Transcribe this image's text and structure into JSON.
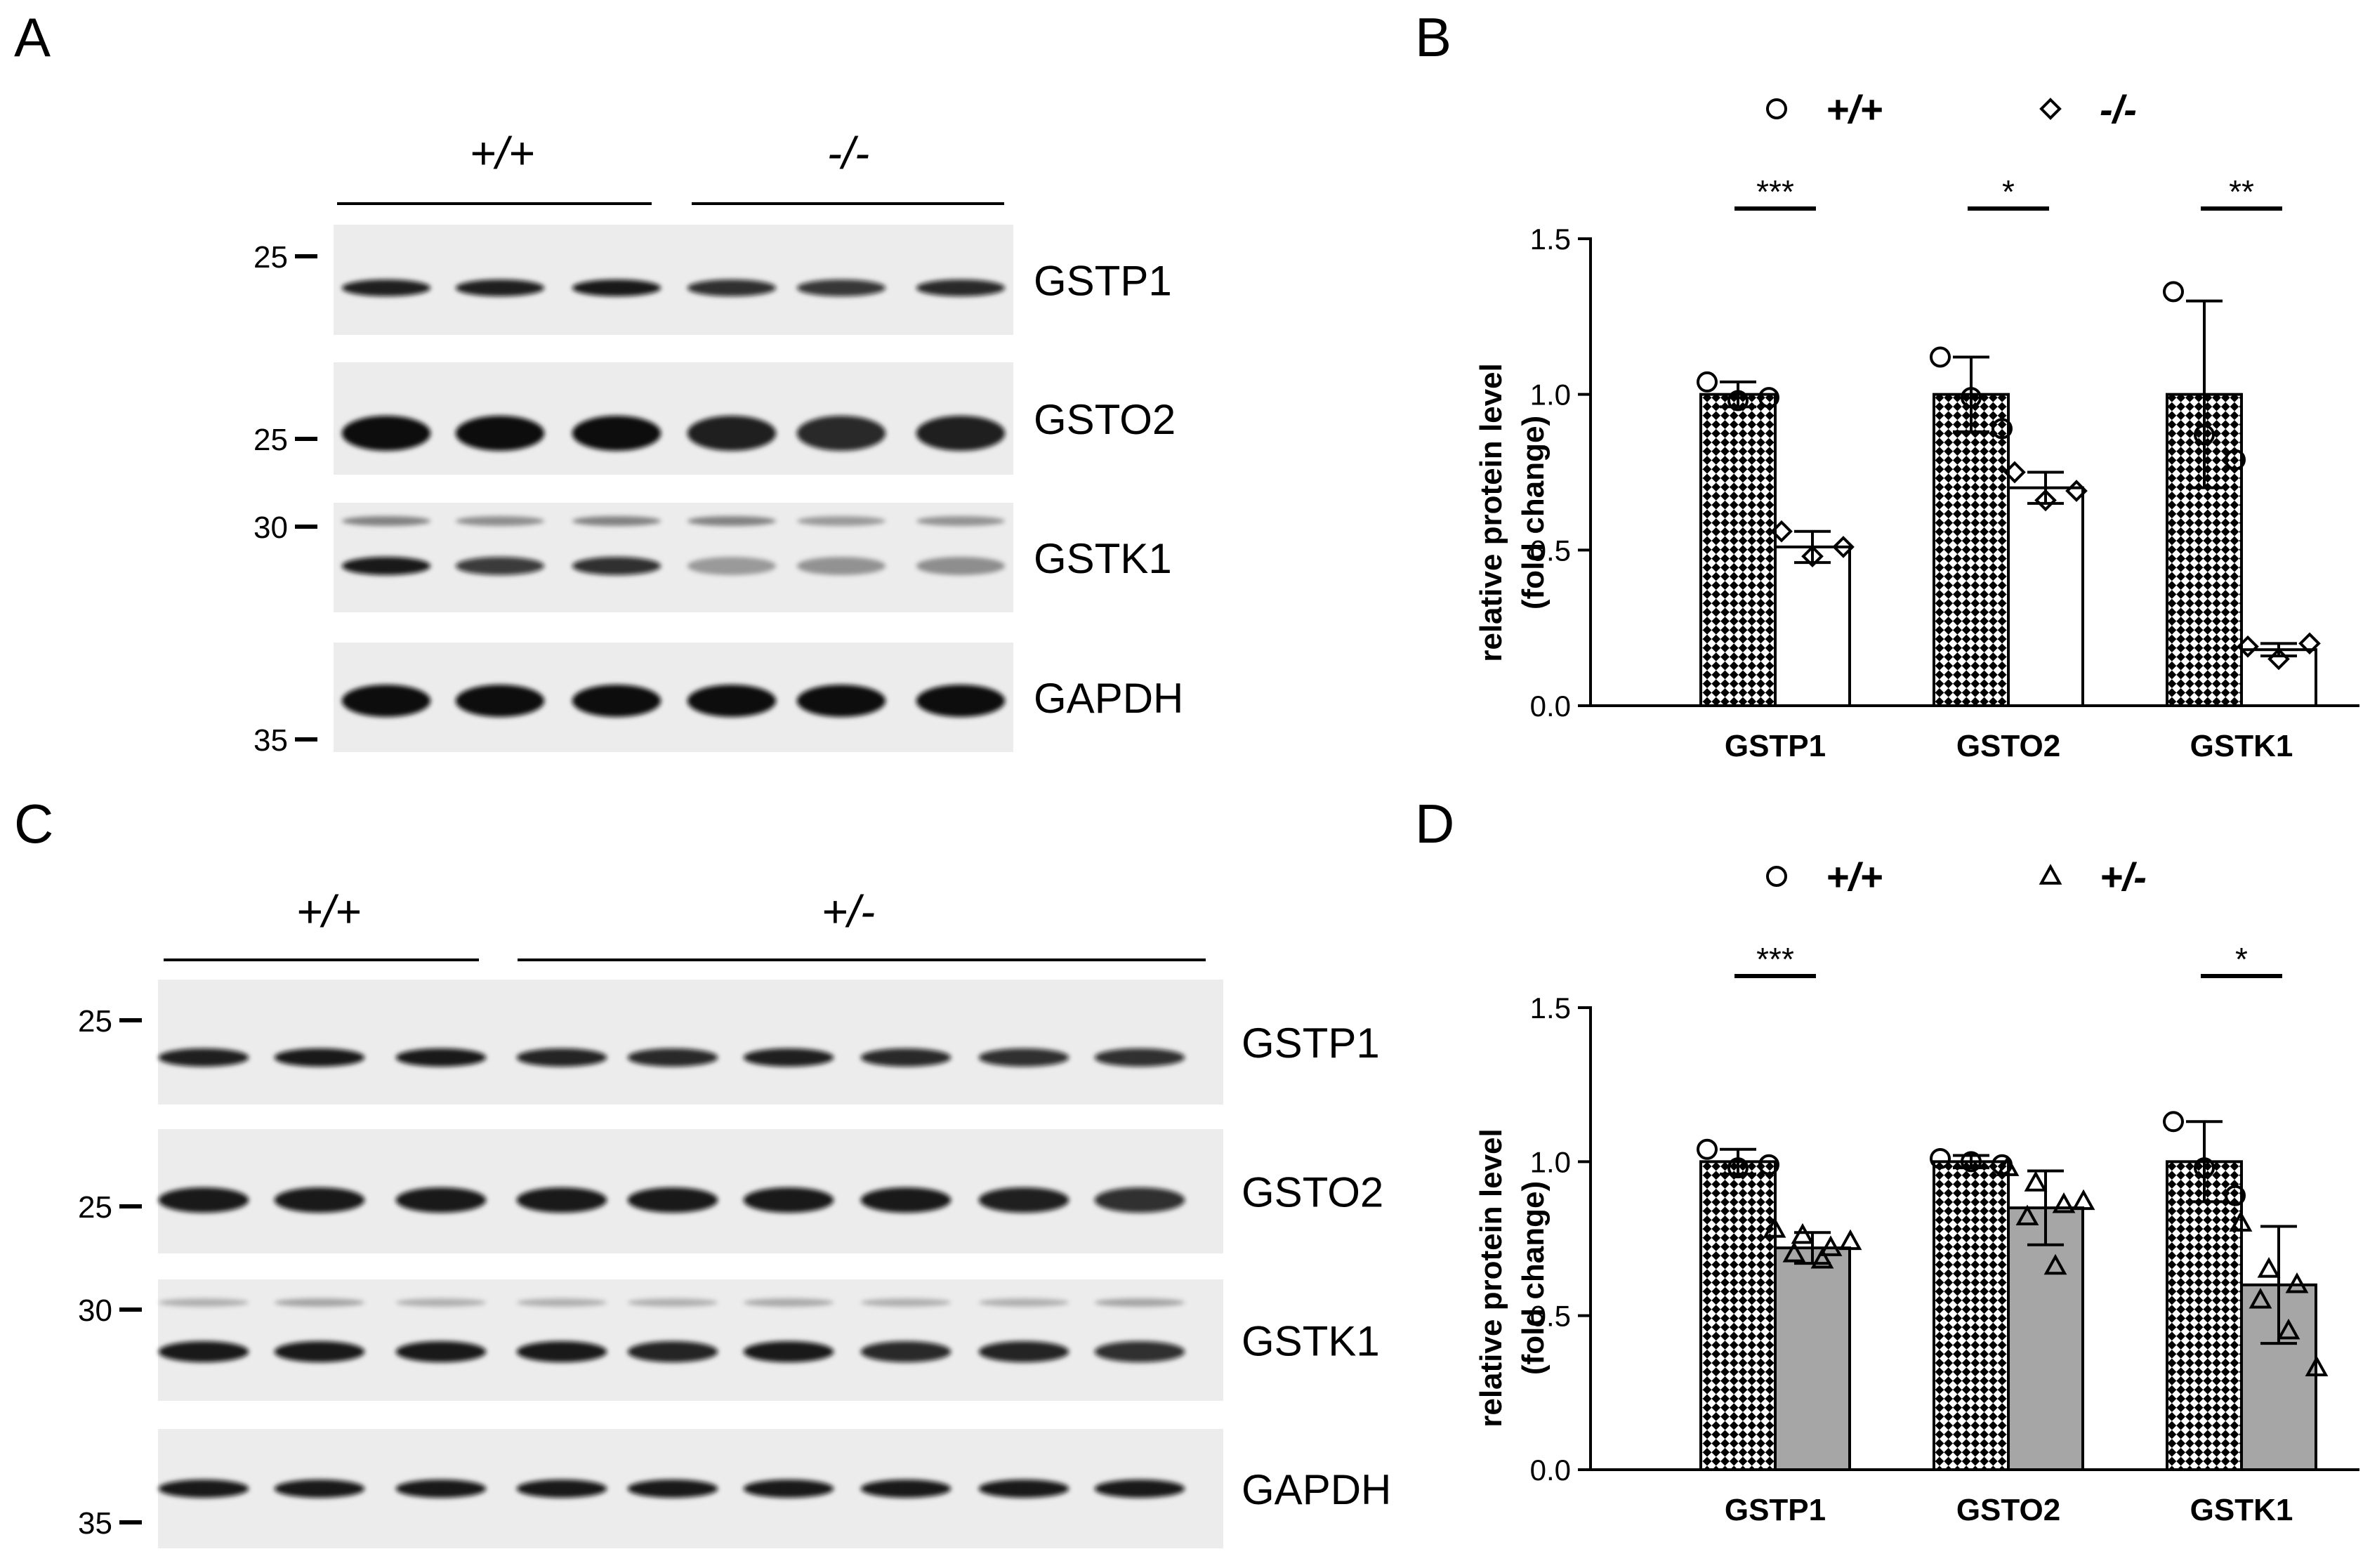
{
  "panels": {
    "A": {
      "letter": "A",
      "groups": [
        {
          "label": "+/+",
          "lanes": 3
        },
        {
          "label": "-/-",
          "lanes": 3
        }
      ],
      "blots": [
        {
          "protein": "GSTP1",
          "markers": [
            "25"
          ]
        },
        {
          "protein": "GSTO2",
          "markers": [
            "25"
          ]
        },
        {
          "protein": "GSTK1",
          "markers": [
            "30"
          ]
        },
        {
          "protein": "GAPDH",
          "markers": [
            "35"
          ]
        }
      ]
    },
    "C": {
      "letter": "C",
      "groups": [
        {
          "label": "+/+",
          "lanes": 3
        },
        {
          "label": "+/-",
          "lanes": 6
        }
      ],
      "blots": [
        {
          "protein": "GSTP1",
          "markers": [
            "25"
          ]
        },
        {
          "protein": "GSTO2",
          "markers": [
            "25"
          ]
        },
        {
          "protein": "GSTK1",
          "markers": [
            "30"
          ]
        },
        {
          "protein": "GAPDH",
          "markers": [
            "35"
          ]
        }
      ]
    }
  },
  "colors": {
    "ink": "#000000",
    "mutant_bar_B": "#ffffff",
    "mutant_bar_D": "#a6a6a6",
    "wt_pattern": "checkerboard-black-white",
    "blot_background": "#ececec"
  },
  "chart_data": [
    {
      "panel": "B",
      "type": "bar",
      "ylabel": [
        "relative protein level",
        "(fold change)"
      ],
      "ylim": [
        0,
        1.5
      ],
      "yticks": [
        "0.0",
        "0.5",
        "1.0",
        "1.5"
      ],
      "categories": [
        "GSTP1",
        "GSTO2",
        "GSTK1"
      ],
      "legend": [
        {
          "label": "+/+",
          "marker": "circle"
        },
        {
          "label": "-/-",
          "marker": "diamond"
        }
      ],
      "series": [
        {
          "name": "+/+",
          "values": [
            1.0,
            1.0,
            1.0
          ],
          "err": [
            0.04,
            0.12,
            0.3
          ],
          "points": [
            [
              1.04,
              0.98,
              0.99
            ],
            [
              1.12,
              0.99,
              0.89
            ],
            [
              1.33,
              0.87,
              0.79
            ]
          ]
        },
        {
          "name": "-/-",
          "values": [
            0.51,
            0.7,
            0.18
          ],
          "err": [
            0.05,
            0.05,
            0.02
          ],
          "points": [
            [
              0.56,
              0.48,
              0.51
            ],
            [
              0.75,
              0.66,
              0.69
            ],
            [
              0.19,
              0.15,
              0.2
            ]
          ]
        }
      ],
      "significance": [
        "***",
        "*",
        "**"
      ]
    },
    {
      "panel": "D",
      "type": "bar",
      "ylabel": [
        "relative protein level",
        "(fold change)"
      ],
      "ylim": [
        0,
        1.5
      ],
      "yticks": [
        "0.0",
        "0.5",
        "1.0",
        "1.5"
      ],
      "categories": [
        "GSTP1",
        "GSTO2",
        "GSTK1"
      ],
      "legend": [
        {
          "label": "+/+",
          "marker": "circle"
        },
        {
          "label": "+/-",
          "marker": "triangle"
        }
      ],
      "series": [
        {
          "name": "+/+",
          "values": [
            1.0,
            1.0,
            1.0
          ],
          "err": [
            0.04,
            0.02,
            0.13
          ],
          "points": [
            [
              1.04,
              0.98,
              0.99
            ],
            [
              1.01,
              1.0,
              0.99
            ],
            [
              1.13,
              0.98,
              0.89
            ]
          ]
        },
        {
          "name": "+/-",
          "values": [
            0.72,
            0.85,
            0.6
          ],
          "err": [
            0.05,
            0.12,
            0.19
          ],
          "points": [
            [
              0.78,
              0.76,
              0.72,
              0.7,
              0.68,
              0.74
            ],
            [
              0.98,
              0.93,
              0.86,
              0.82,
              0.66,
              0.87
            ],
            [
              0.8,
              0.65,
              0.6,
              0.55,
              0.45,
              0.33
            ]
          ]
        }
      ],
      "significance": [
        "***",
        "",
        "*"
      ]
    }
  ]
}
